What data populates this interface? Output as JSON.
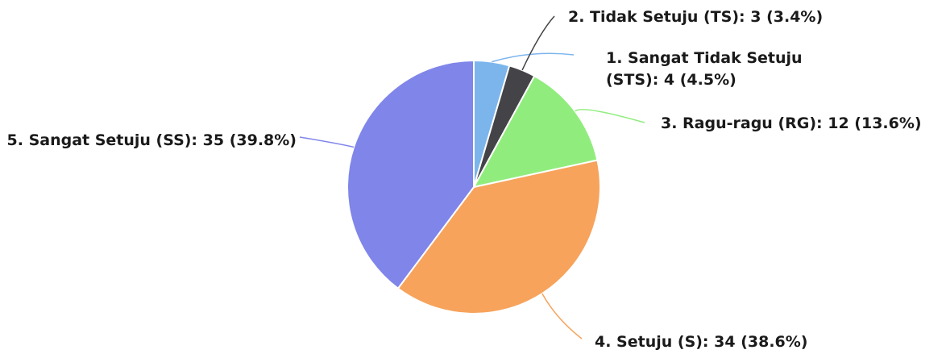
{
  "chart_data": {
    "type": "pie",
    "title": "",
    "slices": [
      {
        "label": "1. Sangat Tidak Setuju (STS): 4 (4.5%)",
        "label_lines": [
          "1. Sangat Tidak Setuju",
          "(STS): 4 (4.5%)"
        ],
        "value": 4,
        "percent": 4.5,
        "color": "#7cb5ec"
      },
      {
        "label": "2. Tidak Setuju (TS): 3 (3.4%)",
        "label_lines": [
          "2. Tidak Setuju (TS): 3 (3.4%)"
        ],
        "value": 3,
        "percent": 3.4,
        "color": "#434348"
      },
      {
        "label": "3. Ragu-ragu (RG): 12 (13.6%)",
        "label_lines": [
          "3. Ragu-ragu (RG): 12 (13.6%)"
        ],
        "value": 12,
        "percent": 13.6,
        "color": "#90ed7d"
      },
      {
        "label": "4. Setuju (S): 34 (38.6%)",
        "label_lines": [
          "4. Setuju (S): 34 (38.6%)"
        ],
        "value": 34,
        "percent": 38.6,
        "color": "#f7a35c"
      },
      {
        "label": "5. Sangat Setuju (SS): 35 (39.8%)",
        "label_lines": [
          "5. Sangat Setuju (SS): 35 (39.8%)"
        ],
        "value": 35,
        "percent": 39.8,
        "color": "#8085e9"
      }
    ]
  }
}
